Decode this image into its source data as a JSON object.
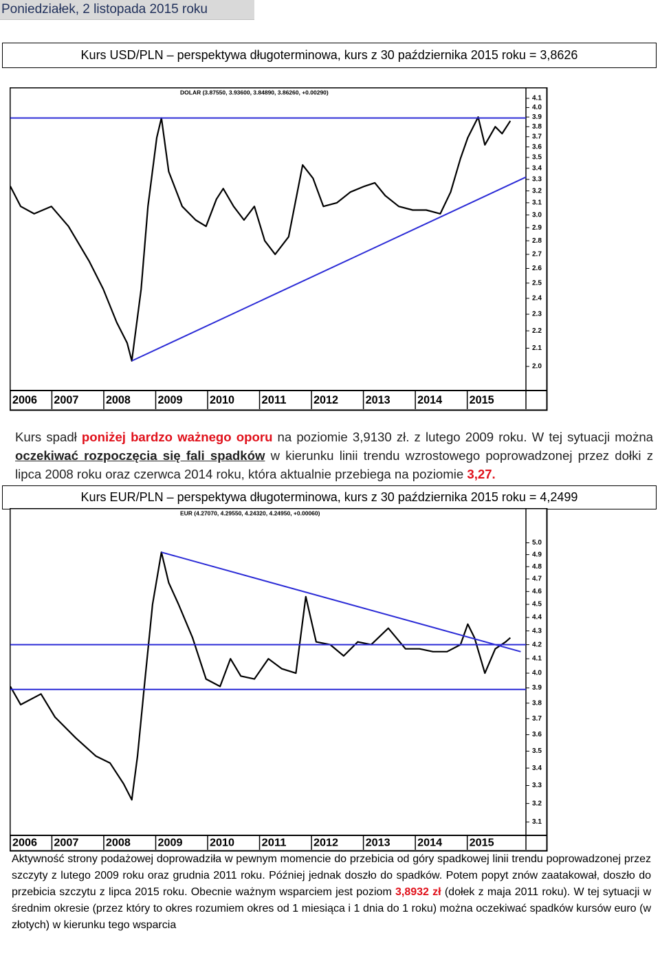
{
  "header": {
    "date": "Poniedziałek, 2 listopada 2015 roku"
  },
  "sections": [
    {
      "caption": "Kurs USD/PLN – perspektywa długoterminowa, kurs z 30 października 2015 roku = 3,8626",
      "paragraph": [
        {
          "text": "Kurs spadł "
        },
        {
          "text": "poniżej bardzo ważnego oporu",
          "style": "red-bold"
        },
        {
          "text": " na poziomie 3,9130 zł. z lutego 2009 roku. W tej sytuacji można"
        },
        {
          "text": " oczekiwać rozpoczęcia się fali spadków",
          "style": "bold-underline"
        },
        {
          "text": " w kierunku linii trendu wzrostowego poprowadzonej przez dołki z lipca 2008 roku oraz czerwca 2014 roku, która aktualnie przebiega na poziomie "
        },
        {
          "text": "3,27.",
          "style": "red-bold"
        }
      ]
    },
    {
      "caption": "Kurs EUR/PLN – perspektywa długoterminowa, kurs z 30 października  2015 roku = 4,2499",
      "paragraph": [
        {
          "text": "Aktywność strony podażowej doprowadziła w pewnym momencie do przebicia od góry spadkowej linii trendu poprowadzonej przez szczyty z lutego 2009 roku oraz grudnia 2011 roku. Później jednak doszło do spadków. Potem popyt znów zaatakował, doszło do przebicia szczytu z lipca 2015 roku. Obecnie ważnym wsparciem jest poziom "
        },
        {
          "text": "3,8932 zł",
          "style": "red-bold"
        },
        {
          "text": " (dołek z maja 2011 roku). W tej sytuacji w średnim okresie (przez który to okres rozumiem okres od 1 miesiąca i 1 dnia do 1 roku) można oczekiwać spadków kursów euro (w złotych) w kierunku tego wsparcia"
        }
      ]
    }
  ],
  "chart_data": [
    {
      "type": "line",
      "title": "DOLAR (3.87550, 3.93600, 3.84890, 3.86260, +0.00290)",
      "log_scale": true,
      "xlim": [
        2006.2,
        2016.13
      ],
      "xticks": [
        2006,
        2007,
        2008,
        2009,
        2010,
        2011,
        2012,
        2013,
        2014,
        2015
      ],
      "ylim": [
        1.875,
        4.215
      ],
      "yticks": [
        4.1,
        {
          "value": 4,
          "label": "4.0"
        },
        3.9,
        3.8,
        3.7,
        3.6,
        3.5,
        3.4,
        3.3,
        3.2,
        3.1,
        {
          "value": 3,
          "label": "3.0"
        },
        2.9,
        2.8,
        2.7,
        2.6,
        2.5,
        2.4,
        2.3,
        2.2,
        2.1,
        {
          "value": 2,
          "label": "2.0"
        }
      ],
      "series": [
        {
          "color": "#000000",
          "x": [
            2006.2,
            2006.4,
            2006.66,
            2006.99,
            2007.32,
            2007.72,
            2007.99,
            2008.25,
            2008.45,
            2008.54,
            2008.72,
            2008.85,
            2009.02,
            2009.11,
            2009.25,
            2009.51,
            2009.77,
            2009.97,
            2010.17,
            2010.3,
            2010.5,
            2010.7,
            2010.9,
            2011.1,
            2011.3,
            2011.56,
            2011.83,
            2012.03,
            2012.23,
            2012.49,
            2012.75,
            2013.02,
            2013.22,
            2013.42,
            2013.68,
            2013.95,
            2014.21,
            2014.48,
            2014.68,
            2014.87,
            2015.01,
            2015.21,
            2015.34,
            2015.54,
            2015.67,
            2015.83
          ],
          "values": [
            3.24,
            3.07,
            3.01,
            3.07,
            2.91,
            2.65,
            2.46,
            2.25,
            2.13,
            2.03,
            2.46,
            3.07,
            3.69,
            3.89,
            3.37,
            3.07,
            2.96,
            2.91,
            3.13,
            3.22,
            3.07,
            2.96,
            3.07,
            2.8,
            2.7,
            2.83,
            3.43,
            3.31,
            3.07,
            3.1,
            3.19,
            3.24,
            3.27,
            3.16,
            3.07,
            3.04,
            3.04,
            3.01,
            3.19,
            3.49,
            3.69,
            3.9,
            3.62,
            3.8,
            3.73,
            3.86
          ]
        },
        {
          "color": "#2b2bd6",
          "x": [
            2006.2,
            2016.13
          ],
          "values": [
            3.89,
            3.89
          ]
        },
        {
          "color": "#2b2bd6",
          "x": [
            2008.54,
            2016.13
          ],
          "values": [
            2.03,
            3.32
          ]
        }
      ]
    },
    {
      "type": "line",
      "title": "EUR (4.27070, 4.29550, 4.24320, 4.24950, +0.00060)",
      "log_scale": true,
      "xlim": [
        2006.2,
        2016.13
      ],
      "xticks": [
        2006,
        2007,
        2008,
        2009,
        2010,
        2011,
        2012,
        2013,
        2014,
        2015
      ],
      "ylim": [
        3.03,
        5.3
      ],
      "yticks": [
        {
          "value": 5,
          "label": "5.0"
        },
        4.9,
        4.8,
        4.7,
        4.6,
        4.5,
        4.4,
        4.3,
        4.2,
        4.1,
        {
          "value": 4,
          "label": "4.0"
        },
        3.9,
        3.8,
        3.7,
        3.6,
        3.5,
        3.4,
        3.3,
        3.2,
        3.1
      ],
      "series": [
        {
          "color": "#000000",
          "x": [
            2006.2,
            2006.4,
            2006.79,
            2007.06,
            2007.46,
            2007.85,
            2008.12,
            2008.38,
            2008.54,
            2008.65,
            2008.78,
            2008.94,
            2009.11,
            2009.25,
            2009.44,
            2009.71,
            2009.97,
            2010.24,
            2010.44,
            2010.64,
            2010.9,
            2011.17,
            2011.43,
            2011.7,
            2011.89,
            2012.09,
            2012.36,
            2012.62,
            2012.89,
            2013.15,
            2013.48,
            2013.81,
            2014.08,
            2014.34,
            2014.61,
            2014.87,
            2015.01,
            2015.14,
            2015.34,
            2015.54,
            2015.74,
            2015.83
          ],
          "values": [
            3.91,
            3.79,
            3.86,
            3.71,
            3.58,
            3.47,
            3.43,
            3.31,
            3.22,
            3.47,
            3.91,
            4.5,
            4.92,
            4.67,
            4.5,
            4.25,
            3.96,
            3.91,
            4.1,
            3.98,
            3.96,
            4.1,
            4.03,
            4.0,
            4.56,
            4.22,
            4.2,
            4.12,
            4.22,
            4.2,
            4.32,
            4.17,
            4.17,
            4.15,
            4.15,
            4.2,
            4.35,
            4.25,
            4.0,
            4.17,
            4.22,
            4.25
          ]
        },
        {
          "color": "#2b2bd6",
          "x": [
            2006.2,
            2016.13
          ],
          "values": [
            4.2,
            4.2
          ]
        },
        {
          "color": "#2b2bd6",
          "x": [
            2006.2,
            2016.13
          ],
          "values": [
            3.89,
            3.89
          ]
        },
        {
          "color": "#2b2bd6",
          "x": [
            2009.11,
            2016.03
          ],
          "values": [
            4.92,
            4.15
          ]
        }
      ]
    }
  ]
}
